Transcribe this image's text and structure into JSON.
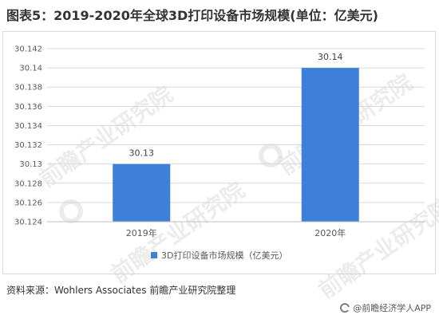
{
  "title": "图表5：2019-2020年全球3D打印设备市场规模(单位：亿美元)",
  "source": "资料来源：Wohlers Associates 前瞻产业研究院整理",
  "brand": "@前瞻经济学人APP",
  "watermark": "前瞻产业研究院",
  "colors": {
    "bar": "#3d7fd9",
    "grid": "#d9d9d9",
    "axis": "#bfbfbf"
  },
  "chart_data": {
    "type": "bar",
    "categories": [
      "2019年",
      "2020年"
    ],
    "series": [
      {
        "name": "3D打印设备市场规模（亿美元）",
        "values": [
          30.13,
          30.14
        ],
        "data_labels": [
          "30.13",
          "30.14"
        ]
      }
    ],
    "ylim": [
      30.124,
      30.142
    ],
    "yticks": [
      30.124,
      30.126,
      30.128,
      30.13,
      30.132,
      30.134,
      30.136,
      30.138,
      30.14,
      30.142
    ],
    "ytick_labels": [
      "30.124",
      "30.126",
      "30.128",
      "30.13",
      "30.132",
      "30.134",
      "30.136",
      "30.138",
      "30.14",
      "30.142"
    ],
    "grid": true,
    "legend_position": "bottom"
  }
}
